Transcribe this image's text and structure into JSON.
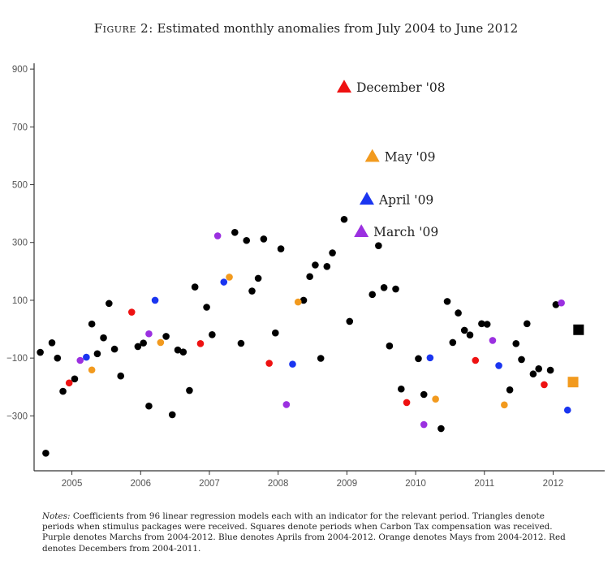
{
  "figure": {
    "label": "Figure 2:",
    "title": "Estimated monthly anomalies from July 2004 to June 2012"
  },
  "notes": {
    "label": "Notes:",
    "text": "Coefficients from 96 linear regression models each with an indicator for the relevant period. Triangles denote periods when stimulus packages were received. Squares denote periods when Carbon Tax compensation was received. Purple denotes Marchs from 2004-2012. Blue denotes Aprils from 2004-2012. Orange denotes Mays from 2004-2012. Red denotes Decembers from 2004-2011."
  },
  "colors": {
    "other": "#000000",
    "march": "#9b30e0",
    "april": "#1a35f0",
    "may": "#f29a1e",
    "december": "#ee1111",
    "axis": "#333333"
  },
  "chart_data": {
    "type": "scatter",
    "title": "",
    "xlabel": "",
    "ylabel": "",
    "xlim": [
      2004.45,
      2012.75
    ],
    "ylim": [
      -490,
      920
    ],
    "x_ticks": [
      2005,
      2006,
      2007,
      2008,
      2009,
      2010,
      2011,
      2012
    ],
    "x_tick_labels": [
      "2005",
      "2006",
      "2007",
      "2008",
      "2009",
      "2010",
      "2011",
      "2012"
    ],
    "y_ticks": [
      -300,
      -100,
      100,
      300,
      500,
      700,
      900
    ],
    "y_tick_labels": [
      "−300",
      "−100",
      "100",
      "300",
      "500",
      "700",
      "900"
    ],
    "grid": false,
    "legend": "none",
    "series": [
      {
        "category": "other",
        "marker": "circle",
        "points": [
          [
            2004.54,
            -80
          ],
          [
            2004.62,
            -429
          ],
          [
            2004.71,
            -47
          ],
          [
            2004.79,
            -100
          ],
          [
            2004.87,
            -215
          ],
          [
            2005.04,
            -172
          ],
          [
            2005.29,
            18
          ],
          [
            2005.37,
            -85
          ],
          [
            2005.46,
            -30
          ],
          [
            2005.54,
            89
          ],
          [
            2005.62,
            -69
          ],
          [
            2005.71,
            -162
          ],
          [
            2005.96,
            -60
          ],
          [
            2006.04,
            -48
          ],
          [
            2006.12,
            -266
          ],
          [
            2006.37,
            -25
          ],
          [
            2006.46,
            -296
          ],
          [
            2006.54,
            -72
          ],
          [
            2006.62,
            -79
          ],
          [
            2006.71,
            -212
          ],
          [
            2006.79,
            146
          ],
          [
            2006.96,
            76
          ],
          [
            2007.04,
            -19
          ],
          [
            2007.37,
            335
          ],
          [
            2007.46,
            -49
          ],
          [
            2007.54,
            307
          ],
          [
            2007.62,
            132
          ],
          [
            2007.71,
            176
          ],
          [
            2007.79,
            312
          ],
          [
            2007.96,
            -13
          ],
          [
            2008.04,
            278
          ],
          [
            2008.37,
            100
          ],
          [
            2008.46,
            182
          ],
          [
            2008.54,
            222
          ],
          [
            2008.62,
            -101
          ],
          [
            2008.71,
            217
          ],
          [
            2008.79,
            264
          ],
          [
            2008.96,
            380
          ],
          [
            2009.04,
            27
          ],
          [
            2009.37,
            120
          ],
          [
            2009.46,
            289
          ],
          [
            2009.54,
            144
          ],
          [
            2009.62,
            -58
          ],
          [
            2009.71,
            139
          ],
          [
            2009.79,
            -207
          ],
          [
            2010.04,
            -102
          ],
          [
            2010.12,
            -226
          ],
          [
            2010.37,
            -344
          ],
          [
            2010.46,
            96
          ],
          [
            2010.54,
            -46
          ],
          [
            2010.62,
            56
          ],
          [
            2010.71,
            -4
          ],
          [
            2010.79,
            -20
          ],
          [
            2010.96,
            19
          ],
          [
            2011.04,
            17
          ],
          [
            2011.37,
            -210
          ],
          [
            2011.46,
            -50
          ],
          [
            2011.54,
            -105
          ],
          [
            2011.62,
            19
          ],
          [
            2011.71,
            -155
          ],
          [
            2011.79,
            -137
          ],
          [
            2011.96,
            -142
          ],
          [
            2012.04,
            85
          ]
        ]
      },
      {
        "category": "march",
        "marker": "circle",
        "points": [
          [
            2005.12,
            -108
          ],
          [
            2006.12,
            -16
          ],
          [
            2007.12,
            323
          ],
          [
            2008.12,
            -261
          ],
          [
            2010.12,
            -330
          ],
          [
            2011.12,
            -39
          ],
          [
            2012.12,
            91
          ]
        ]
      },
      {
        "category": "april",
        "marker": "circle",
        "points": [
          [
            2005.21,
            -97
          ],
          [
            2006.21,
            100
          ],
          [
            2007.21,
            163
          ],
          [
            2008.21,
            -121
          ],
          [
            2010.21,
            -99
          ],
          [
            2011.21,
            -126
          ],
          [
            2012.21,
            -280
          ]
        ]
      },
      {
        "category": "may",
        "marker": "circle",
        "points": [
          [
            2005.29,
            -141
          ],
          [
            2006.29,
            -46
          ],
          [
            2007.29,
            180
          ],
          [
            2008.29,
            94
          ],
          [
            2010.29,
            -242
          ],
          [
            2011.29,
            -262
          ]
        ]
      },
      {
        "category": "december",
        "marker": "circle",
        "points": [
          [
            2004.96,
            -186
          ],
          [
            2005.87,
            59
          ],
          [
            2006.87,
            -50
          ],
          [
            2007.87,
            -118
          ],
          [
            2009.87,
            -254
          ],
          [
            2010.87,
            -108
          ],
          [
            2011.87,
            -192
          ]
        ]
      }
    ],
    "stimulus_triangles": [
      {
        "category": "december",
        "x": 2008.96,
        "y": 838,
        "label": "December '08"
      },
      {
        "category": "may",
        "x": 2009.37,
        "y": 598,
        "label": "May '09"
      },
      {
        "category": "april",
        "x": 2009.29,
        "y": 450,
        "label": "April '09"
      },
      {
        "category": "march",
        "x": 2009.21,
        "y": 338,
        "label": "March '09"
      }
    ],
    "carbon_tax_squares": [
      {
        "category": "other",
        "x": 2012.37,
        "y": -2
      },
      {
        "category": "may",
        "x": 2012.29,
        "y": -183
      }
    ]
  }
}
